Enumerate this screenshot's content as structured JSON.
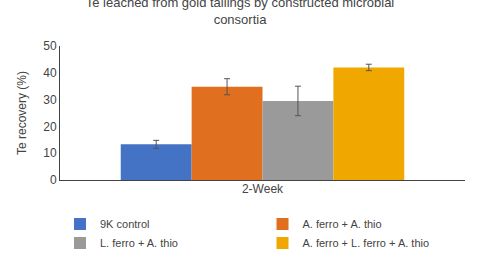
{
  "chart_data": {
    "type": "bar",
    "title": "Te leached from gold tailings by constructed microbial\nconsortia",
    "xlabel": "2-Week",
    "ylabel": "Te recovery (%)",
    "categories": [
      null
    ],
    "series": [
      {
        "name": "9K control",
        "color": "#4472c4",
        "values": [
          13.3
        ],
        "errors": [
          1.5
        ]
      },
      {
        "name": "A. ferro + A. thio",
        "color": "#e07020",
        "values": [
          34.8
        ],
        "errors": [
          3.0
        ]
      },
      {
        "name": "L. ferro + A. thio",
        "color": "#9a9a9a",
        "values": [
          29.5
        ],
        "errors": [
          5.5
        ]
      },
      {
        "name": "A. ferro + L. ferro + A. thio",
        "color": "#f0a800",
        "values": [
          42.0
        ],
        "errors": [
          1.2
        ]
      }
    ],
    "ylim": [
      0,
      50
    ],
    "yticks": [
      0,
      10,
      20,
      30,
      40,
      50
    ],
    "grid": false,
    "legend": "bottom",
    "tick_labels": "y"
  }
}
